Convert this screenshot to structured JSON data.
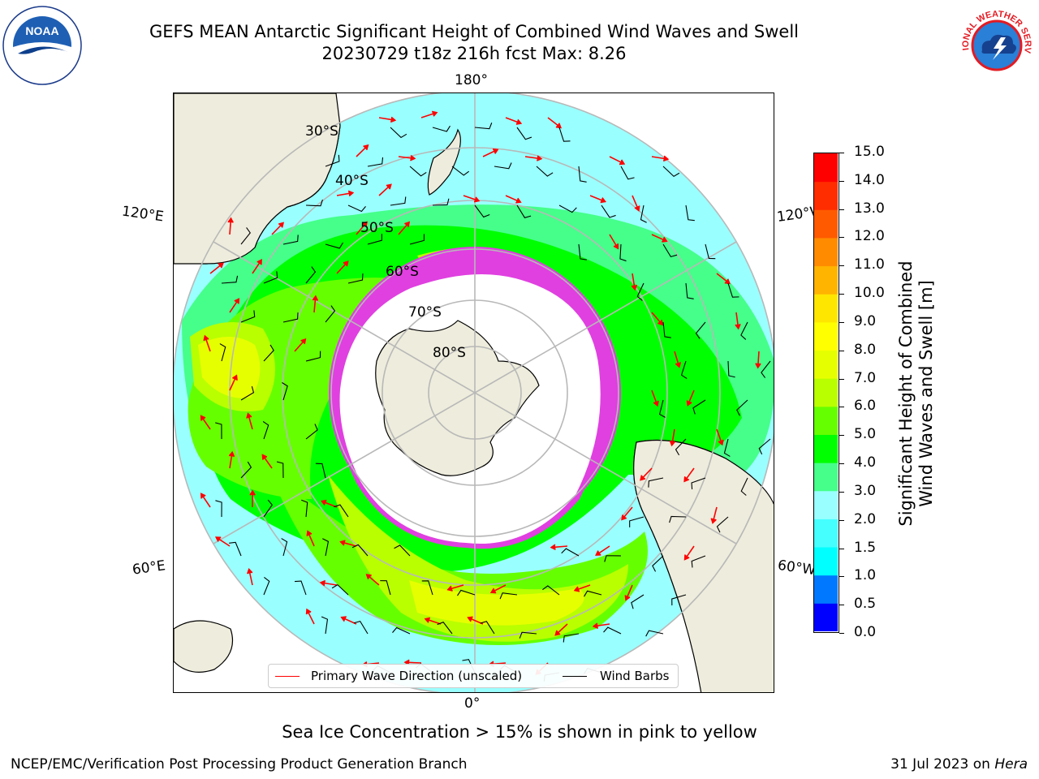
{
  "header": {
    "title_line1": "GEFS MEAN Antarctic Significant Height of Combined Wind Waves and Swell",
    "title_line2": "20230729 t18z 216h fcst   Max: 8.26"
  },
  "logos": {
    "left": "NOAA",
    "right": "NATIONAL WEATHER SERVICE"
  },
  "map": {
    "projection": "south-polar-stereographic",
    "meridian_labels": {
      "top": "180°",
      "bottom": "0°",
      "upper_left": "120°E",
      "upper_right": "120°W",
      "lower_left": "60°E",
      "lower_right": "60°W"
    },
    "latitude_labels": [
      "30°S",
      "40°S",
      "50°S",
      "60°S",
      "70°S",
      "80°S"
    ],
    "colors": {
      "land": "#eeecdc",
      "ice": "#ffffff",
      "ice_edge": "#e040e0",
      "grid": "#b8b8b8",
      "coast": "#000000"
    }
  },
  "colorbar": {
    "label_line1": "Significant Height of Combined",
    "label_line2": "Wind Waves and Swell [m]",
    "ticks": [
      "0.0",
      "0.5",
      "1.0",
      "1.5",
      "2.0",
      "3.0",
      "4.0",
      "5.0",
      "6.0",
      "7.0",
      "8.0",
      "9.0",
      "10.0",
      "11.0",
      "12.0",
      "13.0",
      "14.0",
      "15.0"
    ],
    "colors": [
      "#0000ff",
      "#0078ff",
      "#00ffff",
      "#45ffff",
      "#9affff",
      "#45ff8a",
      "#00ff00",
      "#66ff00",
      "#b9ff00",
      "#e6ff00",
      "#ffff00",
      "#ffe600",
      "#ffb400",
      "#ff8c00",
      "#ff5a00",
      "#ff2d00",
      "#ff0000"
    ]
  },
  "legend": {
    "items": [
      {
        "label": "Primary Wave Direction (unscaled)",
        "color": "#ff0000"
      },
      {
        "label": "Wind Barbs",
        "color": "#000000"
      }
    ]
  },
  "notes": {
    "ice": "Sea Ice Concentration > 15% is shown in pink to yellow"
  },
  "footer": {
    "left": "NCEP/EMC/Verification Post Processing Product Generation Branch",
    "right_date": "31 Jul 2023 on ",
    "right_host": "Hera"
  }
}
